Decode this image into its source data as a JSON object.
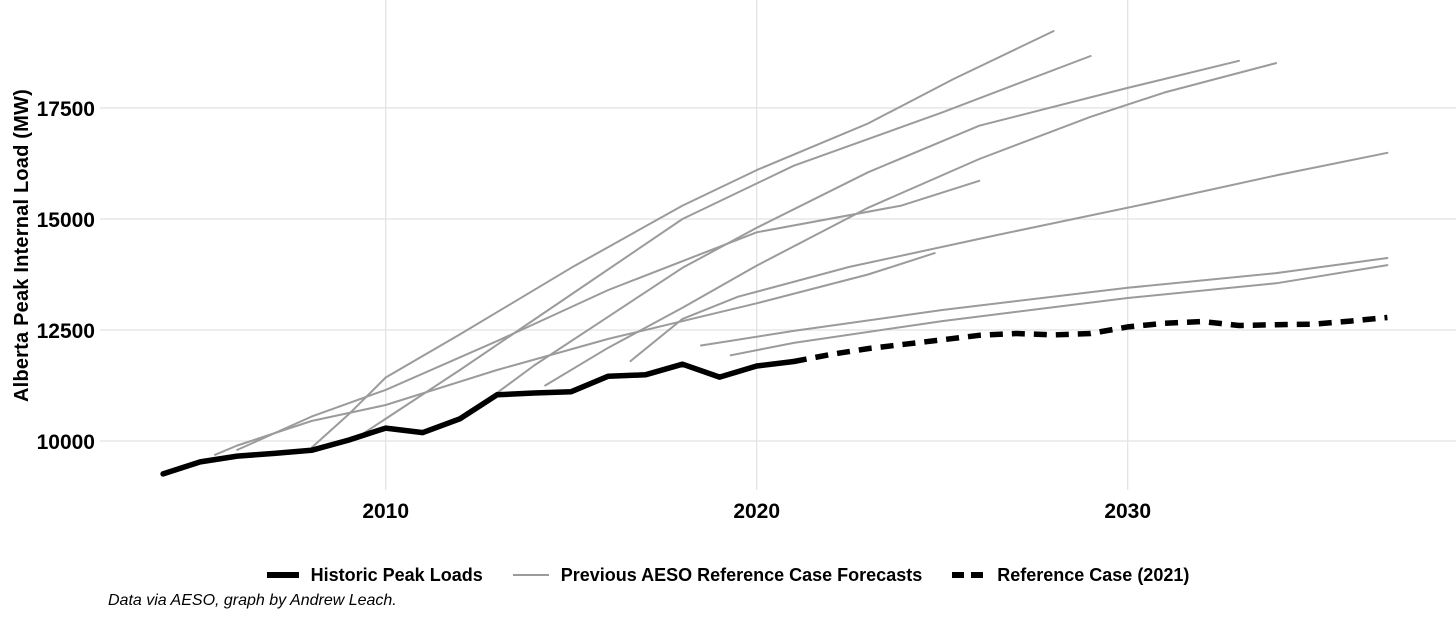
{
  "caption": "Data via AESO, graph by Andrew Leach.",
  "chart_data": {
    "type": "line",
    "title": "",
    "xlabel": "",
    "ylabel": "Alberta Peak Internal Load (MW)",
    "x_ticks": [
      2010,
      2020,
      2030
    ],
    "y_ticks": [
      10000,
      12500,
      15000,
      17500
    ],
    "x_range": [
      2002.3,
      2038.85
    ],
    "y_range": [
      8897,
      19930
    ],
    "grid": true,
    "legend_position": "bottom-center",
    "colors": {
      "historic": "#000000",
      "forecasts": "#9b9b9b",
      "reference_2021": "#000000",
      "grid": "#e2e2e2",
      "background": "#ffffff",
      "text": "#000000"
    },
    "series": [
      {
        "name": "Historic Peak Loads",
        "style": "solid-thick",
        "color": "#000000",
        "points": [
          [
            2004,
            9260
          ],
          [
            2005,
            9530
          ],
          [
            2006,
            9660
          ],
          [
            2007,
            9720
          ],
          [
            2008,
            9790
          ],
          [
            2009,
            10020
          ],
          [
            2010,
            10290
          ],
          [
            2011,
            10190
          ],
          [
            2012,
            10500
          ],
          [
            2013,
            11040
          ],
          [
            2014,
            11080
          ],
          [
            2015,
            11110
          ],
          [
            2016,
            11460
          ],
          [
            2017,
            11490
          ],
          [
            2018,
            11730
          ],
          [
            2019,
            11440
          ],
          [
            2020,
            11690
          ],
          [
            2021,
            11790
          ]
        ]
      },
      {
        "name": "Previous AESO Reference Case Forecasts",
        "style": "thin-solid",
        "color": "#9b9b9b",
        "lines": [
          [
            [
              2005.4,
              9690
            ],
            [
              2006,
              9900
            ],
            [
              2008,
              10450
            ],
            [
              2010,
              10810
            ],
            [
              2013,
              11600
            ],
            [
              2016,
              12300
            ],
            [
              2020,
              13100
            ],
            [
              2023,
              13750
            ],
            [
              2024.8,
              14230
            ]
          ],
          [
            [
              2006,
              9800
            ],
            [
              2008,
              10550
            ],
            [
              2010,
              11150
            ],
            [
              2013,
              12250
            ],
            [
              2016,
              13400
            ],
            [
              2020,
              14700
            ],
            [
              2023.9,
              15300
            ],
            [
              2026,
              15860
            ]
          ],
          [
            [
              2008,
              9850
            ],
            [
              2009,
              10600
            ],
            [
              2010,
              11430
            ],
            [
              2012,
              12400
            ],
            [
              2015,
              13900
            ],
            [
              2018,
              15300
            ],
            [
              2020,
              16100
            ],
            [
              2023,
              17150
            ],
            [
              2025.3,
              18150
            ],
            [
              2028,
              19230
            ]
          ],
          [
            [
              2009.2,
              10060
            ],
            [
              2012,
              11600
            ],
            [
              2015,
              13300
            ],
            [
              2018,
              15000
            ],
            [
              2021,
              16200
            ],
            [
              2025,
              17400
            ],
            [
              2029,
              18670
            ]
          ],
          [
            [
              2012.3,
              10650
            ],
            [
              2014,
              11700
            ],
            [
              2016,
              12800
            ],
            [
              2018,
              13900
            ],
            [
              2020,
              14800
            ],
            [
              2023,
              16050
            ],
            [
              2026,
              17100
            ],
            [
              2030,
              17950
            ],
            [
              2033,
              18560
            ]
          ],
          [
            [
              2014.3,
              11250
            ],
            [
              2016,
              12100
            ],
            [
              2018,
              13000
            ],
            [
              2020,
              13950
            ],
            [
              2023,
              15250
            ],
            [
              2026,
              16350
            ],
            [
              2029,
              17300
            ],
            [
              2031,
              17850
            ],
            [
              2034,
              18510
            ]
          ],
          [
            [
              2016.6,
              11800
            ],
            [
              2018,
              12750
            ],
            [
              2019.5,
              13250
            ],
            [
              2022.5,
              13920
            ],
            [
              2026.5,
              14640
            ],
            [
              2030.6,
              15360
            ],
            [
              2034,
              15980
            ],
            [
              2037,
              16490
            ]
          ],
          [
            [
              2018.5,
              12150
            ],
            [
              2021,
              12480
            ],
            [
              2025,
              12950
            ],
            [
              2030,
              13450
            ],
            [
              2034,
              13780
            ],
            [
              2037,
              14120
            ]
          ],
          [
            [
              2019.3,
              11930
            ],
            [
              2021,
              12210
            ],
            [
              2025,
              12700
            ],
            [
              2030,
              13220
            ],
            [
              2034,
              13550
            ],
            [
              2037,
              13960
            ]
          ]
        ]
      },
      {
        "name": "Reference Case (2021)",
        "style": "dashed-thick",
        "color": "#000000",
        "points": [
          [
            2021,
            11790
          ],
          [
            2022,
            11950
          ],
          [
            2023,
            12080
          ],
          [
            2024,
            12180
          ],
          [
            2025,
            12280
          ],
          [
            2026,
            12380
          ],
          [
            2027,
            12420
          ],
          [
            2028,
            12390
          ],
          [
            2029,
            12420
          ],
          [
            2030,
            12570
          ],
          [
            2031,
            12650
          ],
          [
            2032,
            12690
          ],
          [
            2033,
            12600
          ],
          [
            2034,
            12620
          ],
          [
            2035,
            12630
          ],
          [
            2036,
            12700
          ],
          [
            2037,
            12780
          ]
        ]
      }
    ]
  }
}
